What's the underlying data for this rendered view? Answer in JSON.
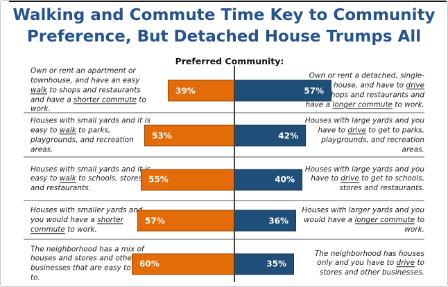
{
  "header": {
    "title_line1": "Walking and Commute Time Key to Community",
    "title_line2": "Preference, But Detached House Trumps All",
    "subtitle": "Preferred Community:"
  },
  "colors": {
    "title_text": "#24538f",
    "walk_bar": "#e36c09",
    "drive_bar": "#1f4e79",
    "axis_line": "#3f3f3f",
    "row_divider": "#ababab",
    "bar_value_text": "#ffffff"
  },
  "chart_data": {
    "type": "bar",
    "subtype": "diverging-horizontal-paired",
    "title": "Walking and Commute Time Key to Community Preference, But Detached House Trumps All",
    "center_header": "Preferred Community:",
    "legend": "none",
    "value_format": "percent",
    "series": [
      {
        "name": "walk",
        "color": "#e36c09",
        "values": [
          39,
          53,
          55,
          57,
          60
        ]
      },
      {
        "name": "drive",
        "color": "#1f4e79",
        "values": [
          57,
          42,
          40,
          36,
          35
        ]
      }
    ],
    "rows": [
      {
        "walk_pct": 39,
        "drive_pct": 57,
        "walk_label": "39%",
        "drive_label": "57%",
        "left_segments": [
          {
            "t": "Own or rent an apartment or townhouse, and have an easy "
          },
          {
            "t": "walk",
            "u": true
          },
          {
            "t": " to shops and restaurants and have a "
          },
          {
            "t": "shorter commute",
            "u": true
          },
          {
            "t": " to work."
          }
        ],
        "right_segments": [
          {
            "t": "Own or rent a detached, single-family house, and have to "
          },
          {
            "t": "drive",
            "u": true
          },
          {
            "t": " to shops and restaurants and have a "
          },
          {
            "t": "longer commute",
            "u": true
          },
          {
            "t": " to work."
          }
        ],
        "divider": true
      },
      {
        "walk_pct": 53,
        "drive_pct": 42,
        "walk_label": "53%",
        "drive_label": "42%",
        "left_segments": [
          {
            "t": "Houses with small yards and it is easy to "
          },
          {
            "t": "walk",
            "u": true
          },
          {
            "t": " to parks, playgrounds, and recreation areas."
          }
        ],
        "right_segments": [
          {
            "t": "Houses with large yards and you have to "
          },
          {
            "t": "drive",
            "u": true
          },
          {
            "t": " to get to parks, playgrounds, and recreation areas."
          }
        ],
        "divider": true
      },
      {
        "walk_pct": 55,
        "drive_pct": 40,
        "walk_label": "55%",
        "drive_label": "40%",
        "left_segments": [
          {
            "t": "Houses with small yards and it is easy to "
          },
          {
            "t": "walk",
            "u": true
          },
          {
            "t": " to schools, stores and restaurants."
          }
        ],
        "right_segments": [
          {
            "t": "Houses with large yards and you have to "
          },
          {
            "t": "drive",
            "u": true
          },
          {
            "t": " to get to schools, stores and restaurants."
          }
        ],
        "divider": true
      },
      {
        "walk_pct": 57,
        "drive_pct": 36,
        "walk_label": "57%",
        "drive_label": "36%",
        "left_segments": [
          {
            "t": "Houses with smaller yards and you would have a "
          },
          {
            "t": "shorter commute",
            "u": true
          },
          {
            "t": " to work."
          }
        ],
        "right_segments": [
          {
            "t": "Houses with larger yards and you would have a "
          },
          {
            "t": "longer commute",
            "u": true
          },
          {
            "t": " to work."
          }
        ],
        "divider": true
      },
      {
        "walk_pct": 60,
        "drive_pct": 35,
        "walk_label": "60%",
        "drive_label": "35%",
        "left_segments": [
          {
            "t": "The neighborhood has a mix of houses and stores and other businesses that are easy to "
          },
          {
            "t": "walk",
            "u": true
          },
          {
            "t": " to."
          }
        ],
        "right_segments": [
          {
            "t": "The neighborhood has houses only and you have to "
          },
          {
            "t": "drive",
            "u": true
          },
          {
            "t": " to stores and other businesses."
          }
        ],
        "divider": false
      }
    ]
  }
}
